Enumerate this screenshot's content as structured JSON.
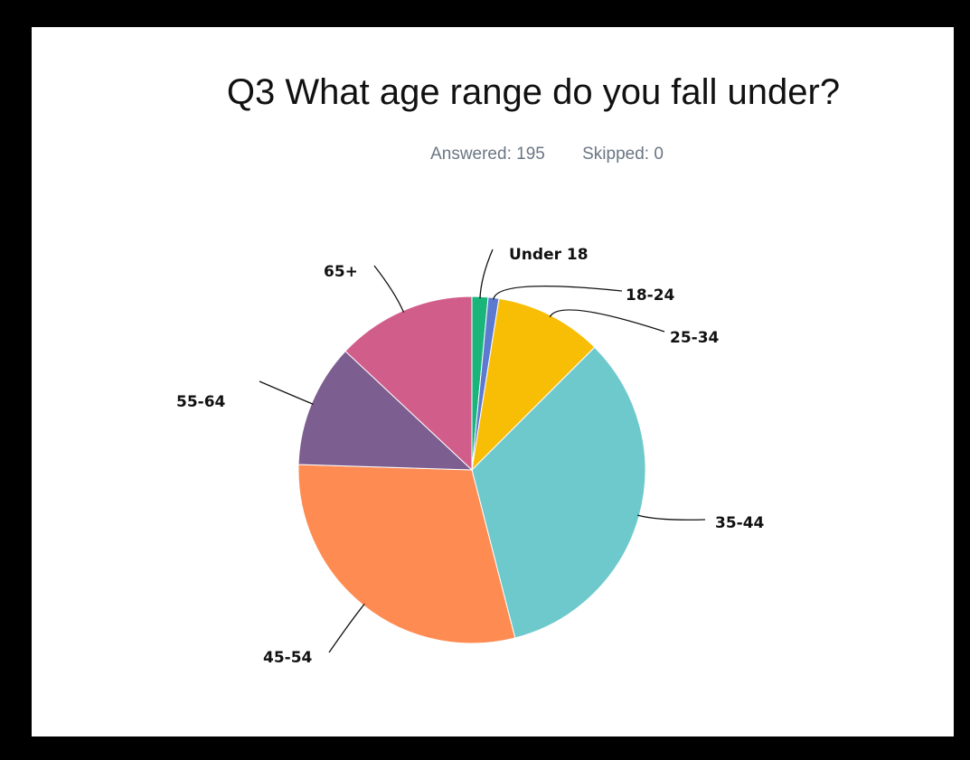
{
  "chart_data": {
    "type": "pie",
    "title": "Q3 What age range do you fall under?",
    "summary": {
      "answered": "Answered: 195",
      "skipped": "Skipped: 0"
    },
    "categories": [
      "Under 18",
      "18-24",
      "25-34",
      "35-44",
      "45-54",
      "55-64",
      "65+"
    ],
    "values": [
      1.5,
      1.0,
      10.0,
      33.5,
      29.5,
      11.5,
      13.0
    ],
    "colors": [
      "#19b57b",
      "#5b7ad0",
      "#f8bd05",
      "#6ec9cc",
      "#fe8b52",
      "#7c5e90",
      "#d15e8a"
    ],
    "legend": "none"
  }
}
